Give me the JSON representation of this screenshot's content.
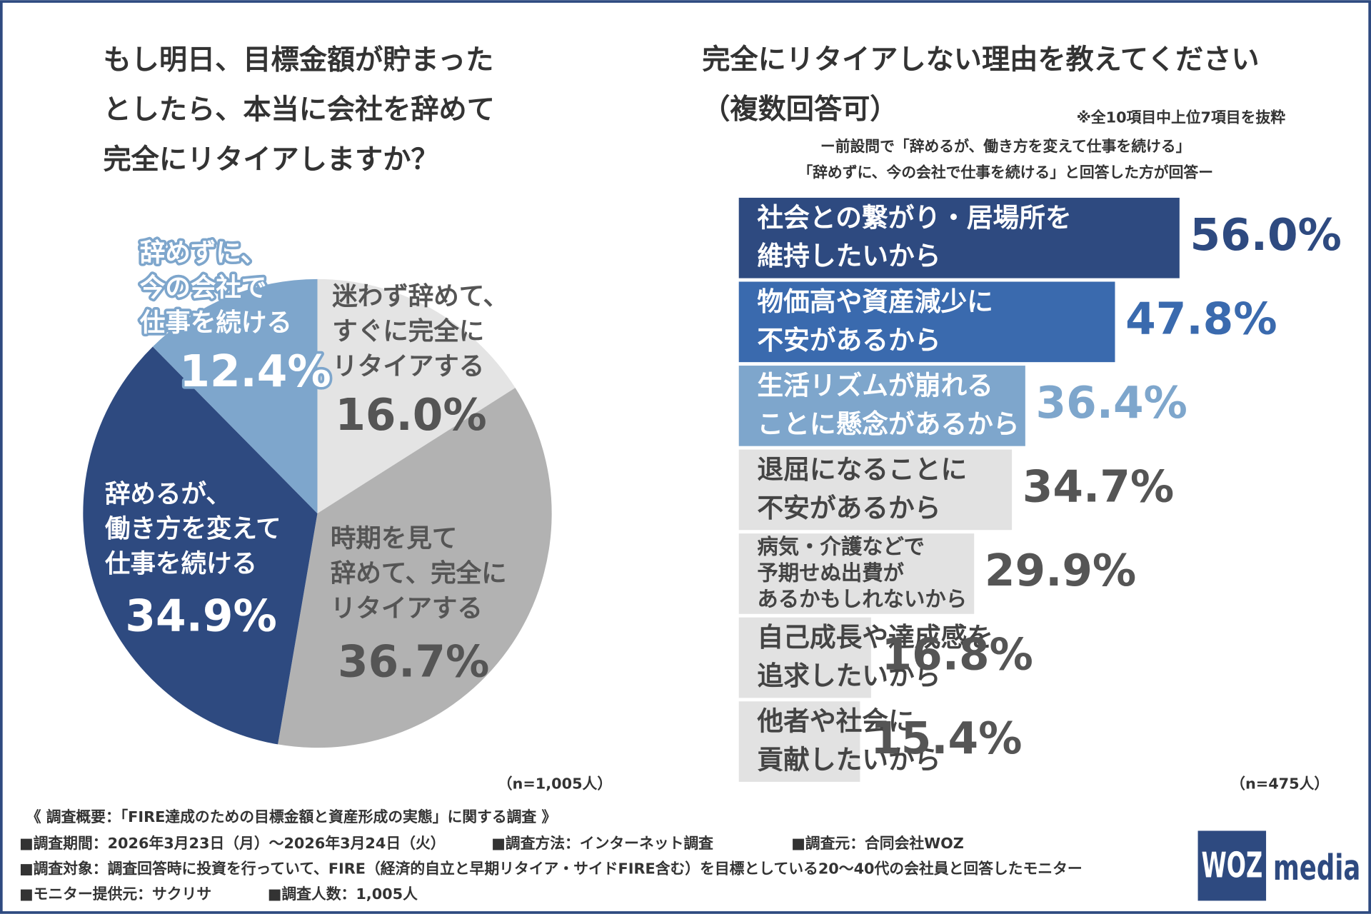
{
  "chart_data": [
    {
      "type": "pie",
      "title": "もし明日、目標金額が貯まった\nとしたら、本当に会社を辞めて\n完全にリタイアしますか？",
      "categories": [
        "迷わず辞めて、\nすぐに完全に\nリタイアする",
        "時期を見て\n辞めて、完全に\nリタイアする",
        "辞めるが、\n働き方を変えて\n仕事を続ける",
        "辞めずに、\n今の会社で\n仕事を続ける"
      ],
      "values": [
        16.0,
        36.7,
        34.9,
        12.4
      ],
      "value_labels": [
        "16.0%",
        "36.7%",
        "34.9%",
        "12.4%"
      ],
      "colors": [
        "#e4e4e4",
        "#b2b2b2",
        "#2e4a80",
        "#7ea6cc"
      ],
      "note": "（n=1,005人）"
    },
    {
      "type": "barh",
      "title": "完全にリタイアしない理由を教えてください",
      "subtitle": "（複数回答可）",
      "annotation": "※全10項目中上位7項目を抜粋",
      "description": [
        "ー前設問で「辞めるが、働き方を変えて仕事を続ける」",
        "「辞めずに、今の会社で仕事を続ける」と回答した方が回答ー"
      ],
      "categories": [
        "社会との繋がり・居場所を\n維持したいから",
        "物価高や資産減少に\n不安があるから",
        "生活リズムが崩れる\nことに懸念があるから",
        "退屈になることに\n不安があるから",
        "病気・介護などで\n予期せぬ出費が\nあるかもしれないから",
        "自己成長や達成感を\n追求したいから",
        "他者や社会に\n貢献したいから"
      ],
      "values": [
        56.0,
        47.8,
        36.4,
        34.7,
        29.9,
        16.8,
        15.4
      ],
      "value_labels": [
        "56.0%",
        "47.8%",
        "36.4%",
        "34.7%",
        "29.9%",
        "16.8%",
        "15.4%"
      ],
      "colors": [
        "#2e4a80",
        "#3a6aae",
        "#7ea6cc",
        "#e2e2e2",
        "#e2e2e2",
        "#e2e2e2",
        "#e2e2e2"
      ],
      "label_colors": [
        "#2e4a80",
        "#3a6aae",
        "#7ea6cc",
        "#555555",
        "#555555",
        "#555555",
        "#555555"
      ],
      "note": "（n=475人）"
    }
  ],
  "footer": {
    "heading": "《 調査概要：「FIRE達成のための目標金額と資産形成の実態」に関する調査 》",
    "period": "■調査期間：2026年3月23日（月）～2026年3月24日（火）",
    "method": "■調査方法：インターネット調査",
    "source": "■調査元：合同会社WOZ",
    "target": "■調査対象：調査回答時に投資を行っていて、FIRE（経済的自立と早期リタイア・サイドFIRE含む）を目標としている20～40代の会社員と回答したモニター",
    "provider": "■モニター提供元：サクリサ",
    "count": "■調査人数：1,005人",
    "logo_main": "WOZ",
    "logo_sub": "media"
  }
}
